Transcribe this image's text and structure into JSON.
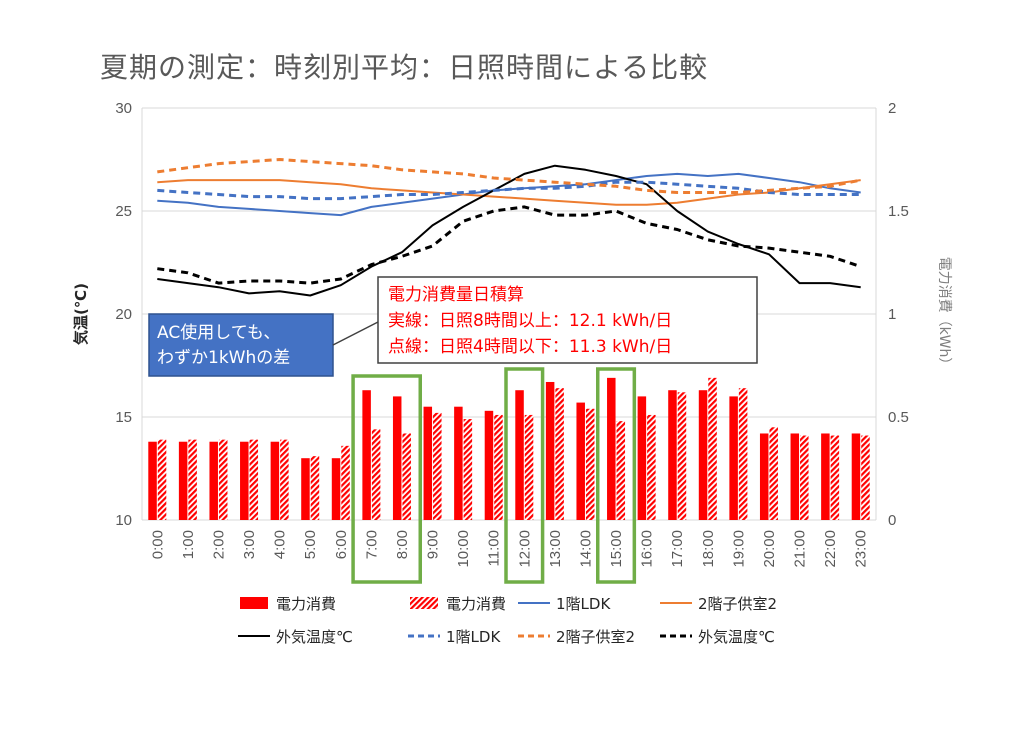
{
  "chart_data": {
    "type": "bar",
    "title": "夏期の測定：時刻別平均：日照時間による比較",
    "ylabel": "気温(℃)",
    "y2label": "電力消費（kWh）",
    "ylim": [
      10,
      30
    ],
    "y2lim": [
      0,
      2
    ],
    "yticks": [
      "10",
      "15",
      "20",
      "25",
      "30"
    ],
    "y2ticks": [
      "0",
      "0.5",
      "1",
      "1.5",
      "2"
    ],
    "categories": [
      "0:00",
      "1:00",
      "2:00",
      "3:00",
      "4:00",
      "5:00",
      "6:00",
      "7:00",
      "8:00",
      "9:00",
      "10:00",
      "11:00",
      "12:00",
      "13:00",
      "14:00",
      "15:00",
      "16:00",
      "17:00",
      "18:00",
      "19:00",
      "20:00",
      "21:00",
      "22:00",
      "23:00"
    ],
    "bar_series": [
      {
        "name": "電力消費",
        "style": "solid",
        "color": "#ff0000",
        "values": [
          0.38,
          0.38,
          0.38,
          0.38,
          0.38,
          0.3,
          0.3,
          0.63,
          0.6,
          0.55,
          0.55,
          0.53,
          0.63,
          0.67,
          0.57,
          0.69,
          0.6,
          0.63,
          0.63,
          0.6,
          0.42,
          0.42,
          0.42,
          0.42
        ]
      },
      {
        "name": "電力消費",
        "style": "hatched",
        "color": "#ff0000",
        "values": [
          0.39,
          0.39,
          0.39,
          0.39,
          0.39,
          0.31,
          0.36,
          0.44,
          0.42,
          0.52,
          0.49,
          0.51,
          0.51,
          0.64,
          0.54,
          0.48,
          0.51,
          0.62,
          0.69,
          0.64,
          0.45,
          0.41,
          0.41,
          0.41
        ]
      }
    ],
    "line_series": [
      {
        "name": "1階LDK",
        "style": "solid",
        "color": "#4472c4",
        "values": [
          25.5,
          25.4,
          25.2,
          25.1,
          25.0,
          24.9,
          24.8,
          25.2,
          25.4,
          25.6,
          25.8,
          26.0,
          26.1,
          26.2,
          26.3,
          26.5,
          26.7,
          26.8,
          26.7,
          26.8,
          26.6,
          26.4,
          26.1,
          25.9
        ]
      },
      {
        "name": "2階子供室2",
        "style": "solid",
        "color": "#ed7d31",
        "values": [
          26.4,
          26.5,
          26.5,
          26.5,
          26.5,
          26.4,
          26.3,
          26.1,
          26.0,
          25.9,
          25.8,
          25.7,
          25.6,
          25.5,
          25.4,
          25.3,
          25.3,
          25.4,
          25.6,
          25.8,
          25.9,
          26.1,
          26.3,
          26.5
        ]
      },
      {
        "name": "外気温度℃",
        "style": "solid",
        "color": "#000000",
        "values": [
          21.7,
          21.5,
          21.3,
          21.0,
          21.1,
          20.9,
          21.4,
          22.3,
          23.0,
          24.3,
          25.2,
          26.0,
          26.8,
          27.2,
          27.0,
          26.7,
          26.3,
          25.0,
          24.0,
          23.4,
          22.9,
          21.5,
          21.5,
          21.3
        ]
      },
      {
        "name": "1階LDK",
        "style": "dashed",
        "color": "#4472c4",
        "values": [
          26.0,
          25.9,
          25.8,
          25.7,
          25.7,
          25.6,
          25.6,
          25.7,
          25.8,
          25.8,
          25.9,
          26.0,
          26.1,
          26.1,
          26.2,
          26.4,
          26.4,
          26.3,
          26.2,
          26.1,
          25.9,
          25.8,
          25.8,
          25.8
        ]
      },
      {
        "name": "2階子供室2",
        "style": "dashed",
        "color": "#ed7d31",
        "values": [
          26.9,
          27.1,
          27.3,
          27.4,
          27.5,
          27.4,
          27.3,
          27.2,
          27.0,
          26.9,
          26.8,
          26.6,
          26.5,
          26.4,
          26.3,
          26.2,
          26.0,
          25.9,
          25.9,
          25.9,
          26.0,
          26.1,
          26.2,
          26.5
        ]
      },
      {
        "name": "外気温度℃",
        "style": "dashed",
        "color": "#000000",
        "values": [
          22.2,
          22.0,
          21.5,
          21.6,
          21.6,
          21.5,
          21.7,
          22.4,
          22.8,
          23.3,
          24.5,
          25.0,
          25.2,
          24.8,
          24.8,
          25.0,
          24.4,
          24.1,
          23.6,
          23.3,
          23.2,
          23.0,
          22.8,
          22.3
        ]
      }
    ],
    "highlight_categories": [
      "7:00",
      "8:00",
      "12:00",
      "15:00"
    ],
    "legend_position": "bottom",
    "annotations": {
      "energy_box": {
        "lines": [
          "電力消費量日積算",
          "実線：日照8時間以上：12.1 kWh/日",
          "点線：日照4時間以下：11.3 kWh/日"
        ],
        "color": "#ff0000"
      },
      "ac_box": {
        "lines": [
          "AC使用しても、",
          "わずか1kWhの差"
        ],
        "fill": "#4472c4",
        "text_color": "#ffffff"
      }
    },
    "colors": {
      "bar": "#ff0000",
      "highlight": "#70ad47",
      "grid": "#d9d9d9",
      "axis_text": "#595959"
    }
  }
}
